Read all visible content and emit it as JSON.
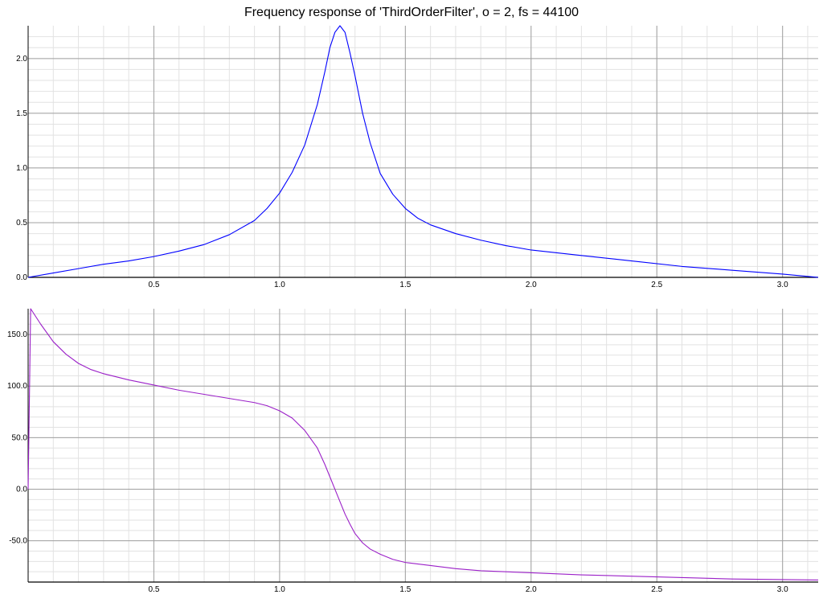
{
  "title": "Frequency response of 'ThirdOrderFilter', o = 2, fs = 44100",
  "colors": {
    "magnitude": "#0000ff",
    "phase": "#9b20c8",
    "grid_major": "#a0a0a0",
    "grid_minor": "#e2e2e2",
    "axis": "#000000"
  },
  "chart_data": [
    {
      "type": "line",
      "title": "",
      "xlabel": "",
      "ylabel": "",
      "xlim": [
        0,
        3.1416
      ],
      "ylim": [
        0,
        2.3
      ],
      "grid": true,
      "x_ticks": [
        0.5,
        1.0,
        1.5,
        2.0,
        2.5,
        3.0
      ],
      "x_tick_labels": [
        "0.5",
        "1.0",
        "1.5",
        "2.0",
        "2.5",
        "3.0"
      ],
      "y_ticks": [
        0.0,
        0.5,
        1.0,
        1.5,
        2.0
      ],
      "y_tick_labels": [
        "0.0",
        "0.5",
        "1.0",
        "1.5",
        "2.0"
      ],
      "series": [
        {
          "x": [
            0.0,
            0.1,
            0.2,
            0.3,
            0.4,
            0.5,
            0.6,
            0.7,
            0.8,
            0.9,
            0.95,
            1.0,
            1.05,
            1.1,
            1.15,
            1.18,
            1.2,
            1.22,
            1.24,
            1.26,
            1.28,
            1.3,
            1.33,
            1.36,
            1.4,
            1.45,
            1.5,
            1.55,
            1.6,
            1.7,
            1.8,
            1.9,
            2.0,
            2.2,
            2.4,
            2.6,
            2.8,
            3.0,
            3.1416
          ],
          "y": [
            0.0,
            0.04,
            0.08,
            0.12,
            0.15,
            0.19,
            0.24,
            0.3,
            0.39,
            0.52,
            0.63,
            0.77,
            0.96,
            1.21,
            1.58,
            1.88,
            2.1,
            2.24,
            2.3,
            2.24,
            2.05,
            1.84,
            1.5,
            1.23,
            0.95,
            0.76,
            0.63,
            0.54,
            0.48,
            0.4,
            0.34,
            0.29,
            0.25,
            0.2,
            0.15,
            0.1,
            0.065,
            0.03,
            0.0
          ]
        }
      ]
    },
    {
      "type": "line",
      "title": "",
      "xlabel": "",
      "ylabel": "",
      "xlim": [
        0,
        3.1416
      ],
      "ylim": [
        -90,
        175
      ],
      "grid": true,
      "x_ticks": [
        0.5,
        1.0,
        1.5,
        2.0,
        2.5,
        3.0
      ],
      "x_tick_labels": [
        "0.5",
        "1.0",
        "1.5",
        "2.0",
        "2.5",
        "3.0"
      ],
      "y_ticks": [
        -50,
        0,
        50,
        100,
        150
      ],
      "y_tick_labels": [
        "-50.0",
        "0.0",
        "50.0",
        "100.0",
        "150.0"
      ],
      "series": [
        {
          "x": [
            0.0,
            0.01,
            0.05,
            0.1,
            0.15,
            0.2,
            0.25,
            0.3,
            0.4,
            0.5,
            0.6,
            0.7,
            0.8,
            0.9,
            0.95,
            1.0,
            1.05,
            1.1,
            1.15,
            1.18,
            1.2,
            1.22,
            1.24,
            1.26,
            1.28,
            1.3,
            1.33,
            1.36,
            1.4,
            1.45,
            1.5,
            1.6,
            1.7,
            1.8,
            2.0,
            2.2,
            2.5,
            2.8,
            3.1416
          ],
          "y": [
            0.0,
            175.0,
            160.0,
            143.0,
            131.0,
            122.0,
            116.0,
            112.0,
            106.0,
            101.0,
            96.0,
            92.0,
            88.0,
            84.0,
            81.0,
            76.0,
            69.0,
            57.0,
            40.0,
            24.0,
            12.0,
            0.0,
            -12.0,
            -24.0,
            -34.0,
            -43.0,
            -52.0,
            -58.0,
            -63.0,
            -68.0,
            -71.0,
            -74.0,
            -77.0,
            -79.0,
            -81.0,
            -83.0,
            -85.0,
            -87.0,
            -88.0
          ]
        }
      ]
    }
  ]
}
